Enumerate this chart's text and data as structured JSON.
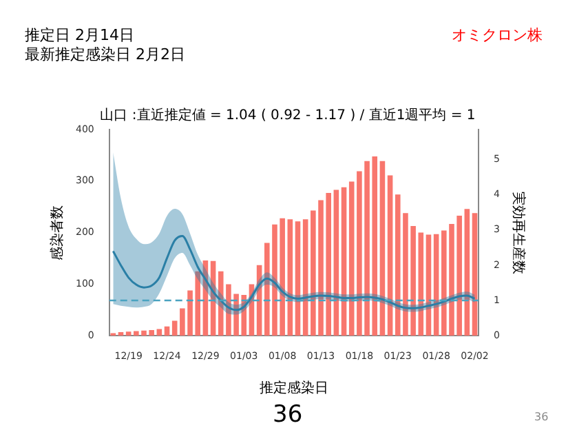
{
  "chart_data": {
    "type": "bar",
    "title": "山口 :直近推定値 = 1.04 ( 0.92 - 1.17 ) / 直近1週平均 = 1",
    "xlabel": "推定感染日",
    "ylabel": "感染者数",
    "y2label": "実効再生産数",
    "annotations": [
      "推定日  2月14日",
      "最新推定感染日  2月2日",
      "オミクロン株",
      "36",
      "36"
    ],
    "categories": [
      null,
      null,
      "12/19",
      null,
      null,
      null,
      null,
      "12/24",
      null,
      null,
      null,
      null,
      "12/29",
      null,
      null,
      null,
      null,
      "01/03",
      null,
      null,
      null,
      null,
      "01/08",
      null,
      null,
      null,
      null,
      "01/13",
      null,
      null,
      null,
      null,
      "01/18",
      null,
      null,
      null,
      null,
      "01/23",
      null,
      null,
      null,
      null,
      "01/28",
      null,
      null,
      null,
      null,
      "02/02"
    ],
    "series": [
      {
        "color": "#f8766d",
        "values": [
          5,
          7,
          8,
          9,
          10,
          11,
          13,
          18,
          29,
          53,
          88,
          125,
          146,
          145,
          125,
          100,
          81,
          79,
          100,
          137,
          180,
          216,
          228,
          226,
          222,
          226,
          243,
          263,
          277,
          283,
          288,
          299,
          319,
          339,
          348,
          339,
          311,
          274,
          238,
          213,
          200,
          196,
          197,
          204,
          217,
          233,
          246,
          238
        ]
      },
      {
        "type": "line",
        "axis": "y2",
        "color": "#2a7fa6",
        "values": [
          2.4,
          2.0,
          1.65,
          1.45,
          1.37,
          1.42,
          1.65,
          2.2,
          2.7,
          2.83,
          2.45,
          1.95,
          1.6,
          1.25,
          1.0,
          0.8,
          0.73,
          0.82,
          1.1,
          1.45,
          1.62,
          1.5,
          1.25,
          1.1,
          1.05,
          1.08,
          1.12,
          1.14,
          1.13,
          1.1,
          1.07,
          1.07,
          1.09,
          1.1,
          1.08,
          1.03,
          0.95,
          0.85,
          0.79,
          0.78,
          0.8,
          0.85,
          0.9,
          0.97,
          1.05,
          1.12,
          1.14,
          1.05
        ],
        "lower": [
          0.9,
          0.85,
          0.82,
          0.8,
          0.82,
          0.9,
          1.2,
          1.7,
          2.2,
          2.35,
          2.0,
          1.6,
          1.3,
          1.0,
          0.8,
          0.62,
          0.6,
          0.7,
          0.95,
          1.3,
          1.45,
          1.37,
          1.13,
          1.0,
          0.95,
          0.98,
          1.02,
          1.04,
          1.03,
          1.0,
          0.97,
          0.97,
          0.99,
          1.0,
          0.98,
          0.93,
          0.85,
          0.75,
          0.69,
          0.68,
          0.7,
          0.75,
          0.8,
          0.87,
          0.95,
          1.02,
          1.03,
          0.94
        ],
        "upper": [
          5.2,
          3.9,
          3.1,
          2.75,
          2.6,
          2.65,
          2.9,
          3.4,
          3.6,
          3.45,
          2.9,
          2.3,
          1.9,
          1.5,
          1.2,
          0.95,
          0.88,
          0.95,
          1.2,
          1.6,
          1.8,
          1.64,
          1.37,
          1.2,
          1.15,
          1.18,
          1.22,
          1.24,
          1.23,
          1.2,
          1.17,
          1.17,
          1.19,
          1.2,
          1.18,
          1.13,
          1.05,
          0.95,
          0.89,
          0.88,
          0.9,
          0.95,
          1.0,
          1.07,
          1.15,
          1.22,
          1.25,
          1.16
        ]
      }
    ],
    "ylim": [
      0,
      400
    ],
    "yticks": [
      0,
      100,
      200,
      300,
      400
    ],
    "y2lim": [
      0,
      5.85
    ],
    "y2ticks": [
      0,
      1,
      2,
      3,
      4,
      5
    ],
    "ref_lines": [
      {
        "axis": "y2",
        "value": 1,
        "color": "#4aa3c0",
        "line_style": "dashed"
      }
    ],
    "grid": false,
    "legend": false
  }
}
